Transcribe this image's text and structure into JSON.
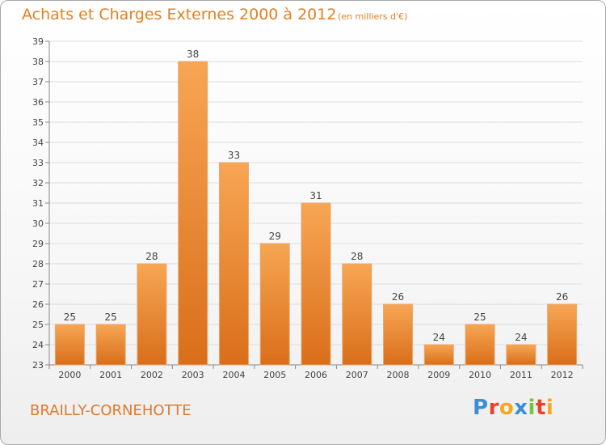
{
  "header": {
    "title": "Achats et Charges Externes 2000 à 2012",
    "subtitle": "(en milliers d'€)"
  },
  "footer": {
    "commune": "BRAILLY-CORNEHOTTE",
    "brand": "Proxiti"
  },
  "colors": {
    "bar_top": "#f7a654",
    "bar_bottom": "#d96e1a",
    "accent": "#e57f1f",
    "grid": "#dddddd"
  },
  "chart_data": {
    "type": "bar",
    "title": "Achats et Charges Externes 2000 à 2012",
    "subtitle": "(en milliers d'€)",
    "categories": [
      "2000",
      "2001",
      "2002",
      "2003",
      "2004",
      "2005",
      "2006",
      "2007",
      "2008",
      "2009",
      "2010",
      "2011",
      "2012"
    ],
    "values": [
      25,
      25,
      28,
      38,
      33,
      29,
      31,
      28,
      26,
      24,
      25,
      24,
      26
    ],
    "ylim": [
      23,
      39
    ],
    "yticks": [
      23,
      24,
      25,
      26,
      27,
      28,
      29,
      30,
      31,
      32,
      33,
      34,
      35,
      36,
      37,
      38,
      39
    ],
    "grid": true,
    "data_labels": true
  }
}
